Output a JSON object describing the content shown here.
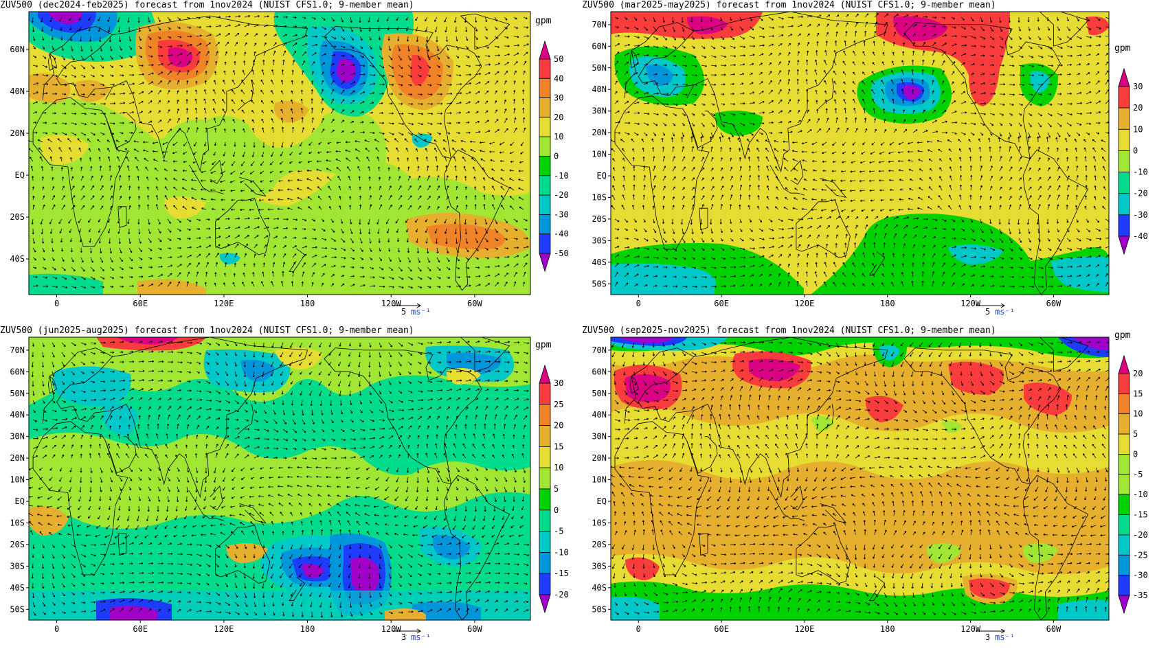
{
  "colors": {
    "palette": [
      "#a000c8",
      "#1e3cff",
      "#0096dc",
      "#00c8c8",
      "#00dc8c",
      "#00d200",
      "#a0e632",
      "#e6dc32",
      "#e6af2d",
      "#f08228",
      "#fa3c3c",
      "#dc0082"
    ],
    "coastline": "#000000",
    "vector": "#000000",
    "units_accent": "#1e3cff"
  },
  "panels": [
    {
      "title": "ZUV500 (dec2024-feb2025) forecast from 1nov2024 (NUIST CFS1.0; 9-member mean)",
      "lat_labels": [
        "60N",
        "40N",
        "20N",
        "EQ",
        "20S",
        "40S"
      ],
      "lon_labels": [
        "0",
        "60E",
        "120E",
        "180",
        "120W",
        "60W"
      ],
      "colorbar": {
        "unit": "gpm",
        "ticks": [
          "50",
          "40",
          "30",
          "20",
          "10",
          "0",
          "-10",
          "-20",
          "-30",
          "-40",
          "-50"
        ]
      },
      "ref_vector": {
        "value": "5",
        "unit": "ms⁻¹"
      }
    },
    {
      "title": "ZUV500 (mar2025-may2025) forecast from 1nov2024 (NUIST CFS1.0; 9-member mean)",
      "lat_labels": [
        "70N",
        "60N",
        "50N",
        "40N",
        "30N",
        "20N",
        "10N",
        "EQ",
        "10S",
        "20S",
        "30S",
        "40S",
        "50S"
      ],
      "lon_labels": [
        "0",
        "60E",
        "120E",
        "180",
        "120W",
        "60W"
      ],
      "colorbar": {
        "unit": "gpm",
        "ticks": [
          "30",
          "20",
          "10",
          "0",
          "-10",
          "-20",
          "-30",
          "-40"
        ]
      },
      "ref_vector": {
        "value": "5",
        "unit": "ms⁻¹"
      }
    },
    {
      "title": "ZUV500 (jun2025-aug2025) forecast from 1nov2024 (NUIST CFS1.0; 9-member mean)",
      "lat_labels": [
        "70N",
        "60N",
        "50N",
        "40N",
        "30N",
        "20N",
        "10N",
        "EQ",
        "10S",
        "20S",
        "30S",
        "40S",
        "50S"
      ],
      "lon_labels": [
        "0",
        "60E",
        "120E",
        "180",
        "120W",
        "60W"
      ],
      "colorbar": {
        "unit": "gpm",
        "ticks": [
          "30",
          "25",
          "20",
          "15",
          "10",
          "5",
          "0",
          "-5",
          "-10",
          "-15",
          "-20"
        ]
      },
      "ref_vector": {
        "value": "3",
        "unit": "ms⁻¹"
      }
    },
    {
      "title": "ZUV500 (sep2025-nov2025) forecast from 1nov2024 (NUIST CFS1.0; 9-member mean)",
      "lat_labels": [
        "70N",
        "60N",
        "50N",
        "40N",
        "30N",
        "20N",
        "10N",
        "EQ",
        "10S",
        "20S",
        "30S",
        "40S",
        "50S"
      ],
      "lon_labels": [
        "0",
        "60E",
        "120E",
        "180",
        "120W",
        "60W"
      ],
      "colorbar": {
        "unit": "gpm",
        "ticks": [
          "20",
          "15",
          "10",
          "5",
          "0",
          "-5",
          "-10",
          "-15",
          "-20",
          "-25",
          "-30",
          "-35"
        ]
      },
      "ref_vector": {
        "value": "3",
        "unit": "ms⁻¹"
      }
    }
  ]
}
